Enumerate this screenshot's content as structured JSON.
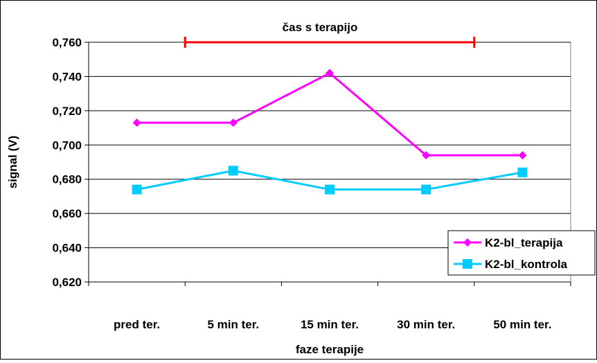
{
  "chart_data": {
    "type": "line",
    "title": "",
    "xlabel": "faze terapije",
    "ylabel": "signal (V)",
    "categories": [
      "pred ter.",
      "5 min ter.",
      "15 min ter.",
      "30 min ter.",
      "50 min ter."
    ],
    "ylim": [
      0.62,
      0.76
    ],
    "y_ticks": [
      0.62,
      0.64,
      0.66,
      0.68,
      0.7,
      0.72,
      0.74,
      0.76
    ],
    "y_tick_labels": [
      "0,620",
      "0,640",
      "0,660",
      "0,680",
      "0,700",
      "0,720",
      "0,740",
      "0,760"
    ],
    "grid": true,
    "legend_position": "bottom-right",
    "annotation": {
      "label": "čas s terapijo",
      "color": "#ff0000",
      "y_value": 0.76,
      "from_category": 0.5,
      "to_category": 3.5
    },
    "series": [
      {
        "name": "K2-bl_terapija",
        "color": "#ff00ff",
        "marker": "diamond",
        "values": [
          0.713,
          0.713,
          0.742,
          0.694,
          0.694
        ]
      },
      {
        "name": "K2-bl_kontrola",
        "color": "#00ccff",
        "marker": "square",
        "values": [
          0.674,
          0.685,
          0.674,
          0.674,
          0.684
        ]
      }
    ]
  }
}
